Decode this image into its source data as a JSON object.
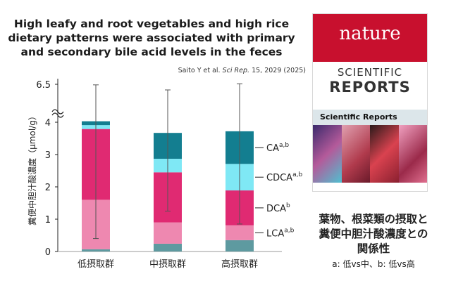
{
  "header": {
    "title_lines": [
      "High leafy and root vegetables and high rice",
      "dietary patterns were associated with primary",
      "and secondary bile acid levels in the feces"
    ],
    "citation_authors": "Saito Y et al.",
    "citation_journal": "Sci Rep.",
    "citation_rest": "15, 2029 (2025)"
  },
  "cover": {
    "brand": "nature",
    "line1": "SCIENTIFIC",
    "line2": "REPORTS",
    "bar_text": "Scientific Reports",
    "colors": [
      "#7a2b6c",
      "#b03a4c",
      "#d9424f",
      "#9b2a4a"
    ]
  },
  "summary": {
    "title_line1": "葉物、根菜類の摂取と",
    "title_line2": "糞便中胆汁酸濃度との",
    "title_line3": "関係性",
    "note": "a: 低vs中、b: 低vs高"
  },
  "chart_data": {
    "type": "bar",
    "stacked": true,
    "ylabel": "糞便中胆汁酸濃度（μmol/g）",
    "ylim": [
      0,
      4.3
    ],
    "axis_break": true,
    "yticks": [
      0,
      1,
      2,
      3,
      4
    ],
    "break_tick": "6.5",
    "grid": false,
    "categories": [
      "低摂取群",
      "中摂取群",
      "高摂取群"
    ],
    "series": [
      {
        "name": "",
        "color": "#5e9aa0",
        "values": [
          0.07,
          0.24,
          0.35
        ]
      },
      {
        "name": "LCA",
        "superscript": "a,b",
        "color": "#ee88b0",
        "values": [
          1.53,
          0.66,
          0.46
        ]
      },
      {
        "name": "DCA",
        "superscript": "b",
        "color": "#e02a72",
        "values": [
          2.19,
          1.55,
          1.08
        ]
      },
      {
        "name": "CDCA",
        "superscript": "a,b",
        "color": "#7fe8f5",
        "values": [
          0.12,
          0.42,
          0.82
        ]
      },
      {
        "name": "CA",
        "superscript": "a,b",
        "color": "#137e90",
        "values": [
          0.12,
          0.8,
          1.01
        ]
      }
    ],
    "error_bars": [
      {
        "upper": 6.4,
        "lower": 0.4
      },
      {
        "upper": 5.5,
        "lower": 1.25
      },
      {
        "upper": 6.6,
        "lower": 0.85
      }
    ]
  }
}
